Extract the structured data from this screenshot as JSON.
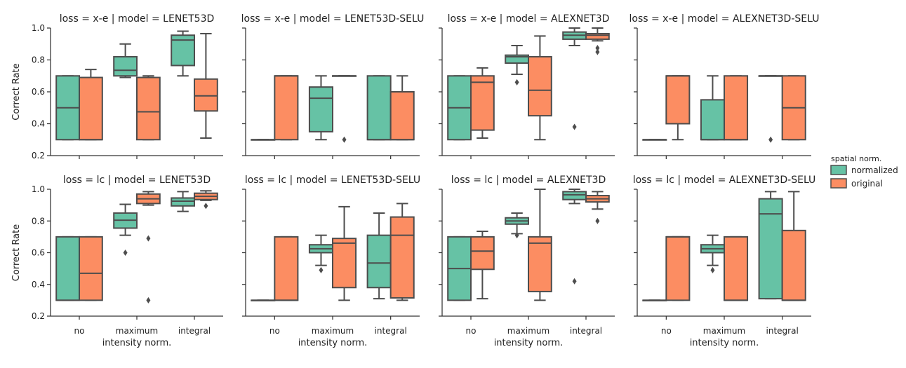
{
  "chart_data": {
    "type": "boxplot",
    "layout": "facet grid 2 rows x 4 columns",
    "row_facet": "loss",
    "col_facet": "model",
    "xlabel": "intensity norm.",
    "ylabel": "Correct Rate",
    "categories": [
      "no",
      "maximum",
      "integral"
    ],
    "ylim": [
      0.2,
      1.0
    ],
    "yticks": [
      "0.2",
      "0.4",
      "0.6",
      "0.8",
      "1.0"
    ],
    "legend": {
      "title": "spatial norm.",
      "placement": "right",
      "entries": [
        {
          "name": "normalized",
          "color": "#66c2a5"
        },
        {
          "name": "original",
          "color": "#fc8d62"
        }
      ]
    },
    "line_color": "#4d4d4d",
    "panels": [
      {
        "title": "loss = x-e | model = LENET53D",
        "boxes": [
          {
            "cat": "no",
            "series": "normalized",
            "whislo": 0.3,
            "q1": 0.3,
            "med": 0.5,
            "q3": 0.7,
            "whishi": 0.7,
            "fliers": []
          },
          {
            "cat": "no",
            "series": "original",
            "whislo": 0.3,
            "q1": 0.3,
            "med": 0.3,
            "q3": 0.69,
            "whishi": 0.74,
            "fliers": []
          },
          {
            "cat": "maximum",
            "series": "normalized",
            "whislo": 0.69,
            "q1": 0.7,
            "med": 0.735,
            "q3": 0.82,
            "whishi": 0.9,
            "fliers": []
          },
          {
            "cat": "maximum",
            "series": "original",
            "whislo": 0.3,
            "q1": 0.3,
            "med": 0.475,
            "q3": 0.69,
            "whishi": 0.7,
            "fliers": []
          },
          {
            "cat": "integral",
            "series": "normalized",
            "whislo": 0.7,
            "q1": 0.765,
            "med": 0.925,
            "q3": 0.955,
            "whishi": 0.98,
            "fliers": []
          },
          {
            "cat": "integral",
            "series": "original",
            "whislo": 0.31,
            "q1": 0.48,
            "med": 0.575,
            "q3": 0.68,
            "whishi": 0.965,
            "fliers": []
          }
        ]
      },
      {
        "title": "loss = x-e | model = LENET53D-SELU",
        "boxes": [
          {
            "cat": "no",
            "series": "normalized",
            "whislo": 0.3,
            "q1": 0.3,
            "med": 0.3,
            "q3": 0.3,
            "whishi": 0.3,
            "fliers": []
          },
          {
            "cat": "no",
            "series": "original",
            "whislo": 0.3,
            "q1": 0.3,
            "med": 0.7,
            "q3": 0.7,
            "whishi": 0.7,
            "fliers": []
          },
          {
            "cat": "maximum",
            "series": "normalized",
            "whislo": 0.3,
            "q1": 0.35,
            "med": 0.56,
            "q3": 0.63,
            "whishi": 0.7,
            "fliers": []
          },
          {
            "cat": "maximum",
            "series": "original",
            "whislo": 0.7,
            "q1": 0.7,
            "med": 0.7,
            "q3": 0.7,
            "whishi": 0.7,
            "fliers": [
              0.3
            ]
          },
          {
            "cat": "integral",
            "series": "normalized",
            "whislo": 0.3,
            "q1": 0.3,
            "med": 0.3,
            "q3": 0.7,
            "whishi": 0.7,
            "fliers": []
          },
          {
            "cat": "integral",
            "series": "original",
            "whislo": 0.3,
            "q1": 0.3,
            "med": 0.3,
            "q3": 0.6,
            "whishi": 0.7,
            "fliers": []
          }
        ]
      },
      {
        "title": "loss = x-e | model = ALEXNET3D",
        "boxes": [
          {
            "cat": "no",
            "series": "normalized",
            "whislo": 0.3,
            "q1": 0.3,
            "med": 0.5,
            "q3": 0.7,
            "whishi": 0.7,
            "fliers": []
          },
          {
            "cat": "no",
            "series": "original",
            "whislo": 0.31,
            "q1": 0.36,
            "med": 0.66,
            "q3": 0.7,
            "whishi": 0.75,
            "fliers": []
          },
          {
            "cat": "maximum",
            "series": "normalized",
            "whislo": 0.71,
            "q1": 0.78,
            "med": 0.82,
            "q3": 0.83,
            "whishi": 0.89,
            "fliers": [
              0.66
            ]
          },
          {
            "cat": "maximum",
            "series": "original",
            "whislo": 0.3,
            "q1": 0.45,
            "med": 0.61,
            "q3": 0.82,
            "whishi": 0.95,
            "fliers": []
          },
          {
            "cat": "integral",
            "series": "normalized",
            "whislo": 0.89,
            "q1": 0.93,
            "med": 0.955,
            "q3": 0.975,
            "whishi": 1.0,
            "fliers": [
              0.38
            ]
          },
          {
            "cat": "integral",
            "series": "original",
            "whislo": 0.92,
            "q1": 0.93,
            "med": 0.955,
            "q3": 0.965,
            "whishi": 1.0,
            "fliers": [
              0.85,
              0.875
            ]
          }
        ]
      },
      {
        "title": "loss = x-e | model = ALEXNET3D-SELU",
        "boxes": [
          {
            "cat": "no",
            "series": "normalized",
            "whislo": 0.3,
            "q1": 0.3,
            "med": 0.3,
            "q3": 0.3,
            "whishi": 0.3,
            "fliers": []
          },
          {
            "cat": "no",
            "series": "original",
            "whislo": 0.3,
            "q1": 0.4,
            "med": 0.7,
            "q3": 0.7,
            "whishi": 0.7,
            "fliers": []
          },
          {
            "cat": "maximum",
            "series": "normalized",
            "whislo": 0.3,
            "q1": 0.3,
            "med": 0.3,
            "q3": 0.55,
            "whishi": 0.7,
            "fliers": []
          },
          {
            "cat": "maximum",
            "series": "original",
            "whislo": 0.3,
            "q1": 0.3,
            "med": 0.3,
            "q3": 0.7,
            "whishi": 0.7,
            "fliers": []
          },
          {
            "cat": "integral",
            "series": "normalized",
            "whislo": 0.7,
            "q1": 0.7,
            "med": 0.7,
            "q3": 0.7,
            "whishi": 0.7,
            "fliers": [
              0.3
            ]
          },
          {
            "cat": "integral",
            "series": "original",
            "whislo": 0.3,
            "q1": 0.3,
            "med": 0.5,
            "q3": 0.7,
            "whishi": 0.7,
            "fliers": []
          }
        ]
      },
      {
        "title": "loss = lc | model = LENET53D",
        "boxes": [
          {
            "cat": "no",
            "series": "normalized",
            "whislo": 0.3,
            "q1": 0.3,
            "med": 0.3,
            "q3": 0.7,
            "whishi": 0.7,
            "fliers": []
          },
          {
            "cat": "no",
            "series": "original",
            "whislo": 0.3,
            "q1": 0.3,
            "med": 0.47,
            "q3": 0.7,
            "whishi": 0.7,
            "fliers": []
          },
          {
            "cat": "maximum",
            "series": "normalized",
            "whislo": 0.71,
            "q1": 0.755,
            "med": 0.805,
            "q3": 0.85,
            "whishi": 0.905,
            "fliers": [
              0.6
            ]
          },
          {
            "cat": "maximum",
            "series": "original",
            "whislo": 0.9,
            "q1": 0.91,
            "med": 0.94,
            "q3": 0.97,
            "whishi": 0.985,
            "fliers": [
              0.69,
              0.3
            ]
          },
          {
            "cat": "integral",
            "series": "normalized",
            "whislo": 0.86,
            "q1": 0.895,
            "med": 0.925,
            "q3": 0.945,
            "whishi": 0.985,
            "fliers": []
          },
          {
            "cat": "integral",
            "series": "original",
            "whislo": 0.93,
            "q1": 0.935,
            "med": 0.955,
            "q3": 0.975,
            "whishi": 0.99,
            "fliers": [
              0.895
            ]
          }
        ]
      },
      {
        "title": "loss = lc | model = LENET53D-SELU",
        "boxes": [
          {
            "cat": "no",
            "series": "normalized",
            "whislo": 0.3,
            "q1": 0.3,
            "med": 0.3,
            "q3": 0.3,
            "whishi": 0.3,
            "fliers": []
          },
          {
            "cat": "no",
            "series": "original",
            "whislo": 0.3,
            "q1": 0.3,
            "med": 0.3,
            "q3": 0.7,
            "whishi": 0.7,
            "fliers": []
          },
          {
            "cat": "maximum",
            "series": "normalized",
            "whislo": 0.52,
            "q1": 0.6,
            "med": 0.625,
            "q3": 0.65,
            "whishi": 0.71,
            "fliers": [
              0.49
            ]
          },
          {
            "cat": "maximum",
            "series": "original",
            "whislo": 0.3,
            "q1": 0.38,
            "med": 0.66,
            "q3": 0.69,
            "whishi": 0.89,
            "fliers": []
          },
          {
            "cat": "integral",
            "series": "normalized",
            "whislo": 0.31,
            "q1": 0.38,
            "med": 0.535,
            "q3": 0.71,
            "whishi": 0.85,
            "fliers": []
          },
          {
            "cat": "integral",
            "series": "original",
            "whislo": 0.3,
            "q1": 0.315,
            "med": 0.71,
            "q3": 0.825,
            "whishi": 0.91,
            "fliers": []
          }
        ]
      },
      {
        "title": "loss = lc | model = ALEXNET3D",
        "boxes": [
          {
            "cat": "no",
            "series": "normalized",
            "whislo": 0.3,
            "q1": 0.3,
            "med": 0.5,
            "q3": 0.7,
            "whishi": 0.7,
            "fliers": []
          },
          {
            "cat": "no",
            "series": "original",
            "whislo": 0.31,
            "q1": 0.495,
            "med": 0.61,
            "q3": 0.7,
            "whishi": 0.735,
            "fliers": []
          },
          {
            "cat": "maximum",
            "series": "normalized",
            "whislo": 0.72,
            "q1": 0.78,
            "med": 0.8,
            "q3": 0.82,
            "whishi": 0.85,
            "fliers": [
              0.71
            ]
          },
          {
            "cat": "maximum",
            "series": "original",
            "whislo": 0.3,
            "q1": 0.355,
            "med": 0.66,
            "q3": 0.7,
            "whishi": 1.0,
            "fliers": []
          },
          {
            "cat": "integral",
            "series": "normalized",
            "whislo": 0.91,
            "q1": 0.935,
            "med": 0.965,
            "q3": 0.985,
            "whishi": 1.0,
            "fliers": [
              0.42
            ]
          },
          {
            "cat": "integral",
            "series": "original",
            "whislo": 0.875,
            "q1": 0.92,
            "med": 0.94,
            "q3": 0.96,
            "whishi": 0.985,
            "fliers": [
              0.8
            ]
          }
        ]
      },
      {
        "title": "loss = lc | model = ALEXNET3D-SELU",
        "boxes": [
          {
            "cat": "no",
            "series": "normalized",
            "whislo": 0.3,
            "q1": 0.3,
            "med": 0.3,
            "q3": 0.3,
            "whishi": 0.3,
            "fliers": []
          },
          {
            "cat": "no",
            "series": "original",
            "whislo": 0.3,
            "q1": 0.3,
            "med": 0.7,
            "q3": 0.7,
            "whishi": 0.7,
            "fliers": []
          },
          {
            "cat": "maximum",
            "series": "normalized",
            "whislo": 0.52,
            "q1": 0.6,
            "med": 0.625,
            "q3": 0.65,
            "whishi": 0.71,
            "fliers": [
              0.49
            ]
          },
          {
            "cat": "maximum",
            "series": "original",
            "whislo": 0.3,
            "q1": 0.3,
            "med": 0.3,
            "q3": 0.7,
            "whishi": 0.7,
            "fliers": []
          },
          {
            "cat": "integral",
            "series": "normalized",
            "whislo": 0.31,
            "q1": 0.31,
            "med": 0.845,
            "q3": 0.94,
            "whishi": 0.985,
            "fliers": []
          },
          {
            "cat": "integral",
            "series": "original",
            "whislo": 0.3,
            "q1": 0.3,
            "med": 0.3,
            "q3": 0.74,
            "whishi": 0.985,
            "fliers": []
          }
        ]
      }
    ]
  }
}
